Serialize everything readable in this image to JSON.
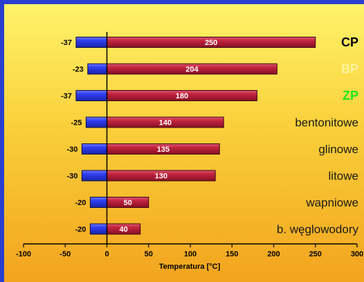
{
  "chart_data": {
    "type": "bar",
    "orientation": "horizontal",
    "title": "",
    "xlabel": "Temperatura [°C]",
    "ylabel": "",
    "xlim": [
      -100,
      300
    ],
    "xticks": [
      -100,
      -50,
      0,
      50,
      100,
      150,
      200,
      250,
      300
    ],
    "grid": false,
    "legend": "none",
    "categories": [
      "CP",
      "BP",
      "ZP",
      "bentonitowe",
      "glinowe",
      "litowe",
      "wapniowe",
      "b. węglowodory"
    ],
    "category_colors": [
      "#000000",
      "#fff59a",
      "#1ee81e",
      "#1a1a1a",
      "#1a1a1a",
      "#1a1a1a",
      "#1a1a1a",
      "#1a1a1a"
    ],
    "series": [
      {
        "values": [
          -37,
          -23,
          -37,
          -25,
          -30,
          -30,
          -20,
          -20
        ],
        "color": "#2e3de0"
      },
      {
        "values": [
          250,
          204,
          180,
          140,
          135,
          130,
          50,
          40
        ],
        "color": "#b81f3e"
      }
    ]
  }
}
